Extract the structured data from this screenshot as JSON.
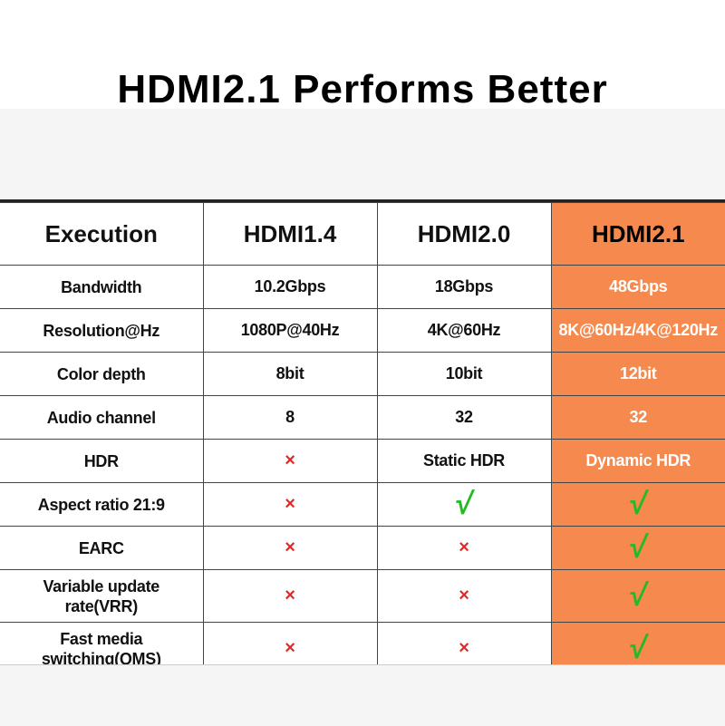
{
  "title": "HDMI2.1 Performs Better",
  "colors": {
    "highlight": "#f5894e",
    "cross": "#e02a2a",
    "check": "#22bb22"
  },
  "icons": {
    "cross": "×",
    "check": "√"
  },
  "table": {
    "headers": [
      "Execution",
      "HDMI1.4",
      "HDMI2.0",
      "HDMI2.1"
    ],
    "rows": [
      {
        "label": "Bandwidth",
        "cells": [
          {
            "type": "text",
            "value": "10.2Gbps"
          },
          {
            "type": "text",
            "value": "18Gbps"
          },
          {
            "type": "text",
            "value": "48Gbps"
          }
        ]
      },
      {
        "label": "Resolution@Hz",
        "cells": [
          {
            "type": "text",
            "value": "1080P@40Hz"
          },
          {
            "type": "text",
            "value": "4K@60Hz"
          },
          {
            "type": "text",
            "value": "8K@60Hz/4K@120Hz"
          }
        ]
      },
      {
        "label": "Color depth",
        "cells": [
          {
            "type": "text",
            "value": "8bit"
          },
          {
            "type": "text",
            "value": "10bit"
          },
          {
            "type": "text",
            "value": "12bit"
          }
        ]
      },
      {
        "label": "Audio channel",
        "cells": [
          {
            "type": "text",
            "value": "8"
          },
          {
            "type": "text",
            "value": "32"
          },
          {
            "type": "text",
            "value": "32"
          }
        ]
      },
      {
        "label": "HDR",
        "cells": [
          {
            "type": "cross"
          },
          {
            "type": "text",
            "value": "Static HDR"
          },
          {
            "type": "text",
            "value": "Dynamic HDR"
          }
        ]
      },
      {
        "label": "Aspect ratio 21:9",
        "cells": [
          {
            "type": "cross"
          },
          {
            "type": "check"
          },
          {
            "type": "check"
          }
        ]
      },
      {
        "label": "EARC",
        "cells": [
          {
            "type": "cross"
          },
          {
            "type": "cross"
          },
          {
            "type": "check"
          }
        ]
      },
      {
        "label": "Variable update\nrate(VRR)",
        "tall": true,
        "cells": [
          {
            "type": "cross"
          },
          {
            "type": "cross"
          },
          {
            "type": "check"
          }
        ]
      },
      {
        "label": "Fast media\nswitching(QMS)",
        "tall": true,
        "cells": [
          {
            "type": "cross"
          },
          {
            "type": "cross"
          },
          {
            "type": "check"
          }
        ]
      }
    ]
  }
}
